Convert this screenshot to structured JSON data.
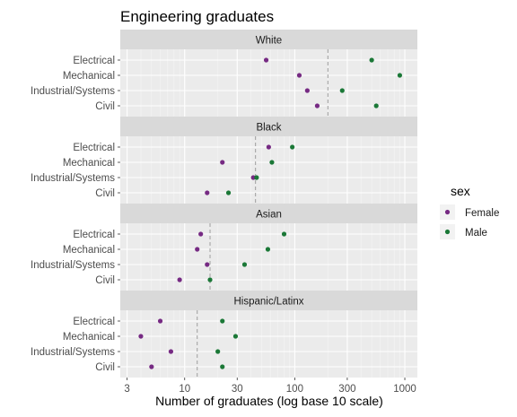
{
  "chart_data": {
    "type": "scatter",
    "title": "Engineering graduates",
    "xlabel": "Number of graduates (log base 10 scale)",
    "ylabel": "",
    "x_scale": "log10",
    "xlim": [
      2.6,
      1300
    ],
    "x_ticks": [
      3,
      10,
      30,
      100,
      300,
      1000
    ],
    "categories": [
      "Electrical",
      "Mechanical",
      "Industrial/Systems",
      "Civil"
    ],
    "grid": true,
    "legend": {
      "title": "sex",
      "position": "right",
      "entries": [
        {
          "name": "Female",
          "color": "#762a83"
        },
        {
          "name": "Male",
          "color": "#1b7837"
        }
      ]
    },
    "panels": [
      {
        "label": "White",
        "reference_line": 200,
        "series": [
          {
            "name": "Female",
            "values": [
              55,
              110,
              130,
              160
            ]
          },
          {
            "name": "Male",
            "values": [
              500,
              900,
              270,
              550
            ]
          }
        ]
      },
      {
        "label": "Black",
        "reference_line": 44,
        "series": [
          {
            "name": "Female",
            "values": [
              58,
              22,
              42,
              16
            ]
          },
          {
            "name": "Male",
            "values": [
              95,
              62,
              45,
              25
            ]
          }
        ]
      },
      {
        "label": "Asian",
        "reference_line": 17,
        "series": [
          {
            "name": "Female",
            "values": [
              14,
              13,
              16,
              9
            ]
          },
          {
            "name": "Male",
            "values": [
              80,
              57,
              35,
              17
            ]
          }
        ]
      },
      {
        "label": "Hispanic/Latinx",
        "reference_line": 13,
        "series": [
          {
            "name": "Female",
            "values": [
              6,
              4,
              7.5,
              5
            ]
          },
          {
            "name": "Male",
            "values": [
              22,
              29,
              20,
              22
            ]
          }
        ]
      }
    ]
  }
}
